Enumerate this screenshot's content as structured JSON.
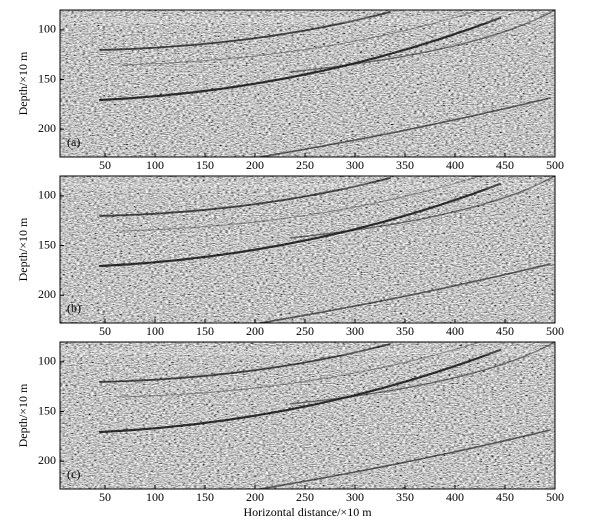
{
  "chart_data": [
    {
      "type": "image",
      "panel_label": "(a)",
      "ylabel": "Depth/×10 m",
      "xlim": [
        5,
        500
      ],
      "xticks": [
        50,
        100,
        150,
        200,
        250,
        300,
        350,
        400,
        450,
        500
      ],
      "ylim": [
        80,
        228
      ],
      "yticks": [
        100,
        150,
        200
      ]
    },
    {
      "type": "image",
      "panel_label": "(b)",
      "ylabel": "Depth/×10 m",
      "xlim": [
        5,
        500
      ],
      "xticks": [
        50,
        100,
        150,
        200,
        250,
        300,
        350,
        400,
        450,
        500
      ],
      "ylim": [
        80,
        228
      ],
      "yticks": [
        100,
        150,
        200
      ]
    },
    {
      "type": "image",
      "panel_label": "(c)",
      "ylabel": "Depth/×10 m",
      "xlabel": "Horizontal distance/×10 m",
      "xlim": [
        5,
        500
      ],
      "xticks": [
        50,
        100,
        150,
        200,
        250,
        300,
        350,
        400,
        450,
        500
      ],
      "ylim": [
        80,
        228
      ],
      "yticks": [
        100,
        150,
        200
      ]
    }
  ]
}
